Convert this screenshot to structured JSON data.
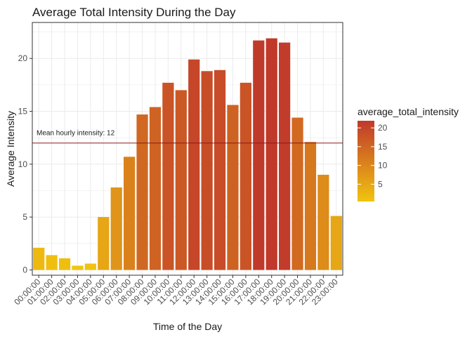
{
  "chart_data": {
    "type": "bar",
    "title": "Average Total Intensity During the Day",
    "xlabel": "Time of the Day",
    "ylabel": "Average Intensity",
    "categories": [
      "00:00:00",
      "01:00:00",
      "02:00:00",
      "03:00:00",
      "04:00:00",
      "05:00:00",
      "06:00:00",
      "07:00:00",
      "08:00:00",
      "09:00:00",
      "10:00:00",
      "11:00:00",
      "12:00:00",
      "13:00:00",
      "14:00:00",
      "15:00:00",
      "16:00:00",
      "17:00:00",
      "18:00:00",
      "19:00:00",
      "20:00:00",
      "21:00:00",
      "22:00:00",
      "23:00:00"
    ],
    "values": [
      2.1,
      1.4,
      1.1,
      0.4,
      0.6,
      5.0,
      7.8,
      10.7,
      14.7,
      15.4,
      17.7,
      17.0,
      19.9,
      18.8,
      18.9,
      15.6,
      17.7,
      21.7,
      21.9,
      21.5,
      14.4,
      12.1,
      9.0,
      5.1
    ],
    "ylim": [
      -0.5,
      23.4
    ],
    "yticks": [
      0,
      5,
      10,
      15,
      20
    ],
    "grid": true,
    "reference_line": {
      "value": 12,
      "label": "Mean hourly intensity: 12",
      "color": "#8b1a1a"
    },
    "legend": {
      "title": "average_total_intensity",
      "placement": "right",
      "ticks": [
        5,
        10,
        15,
        20
      ],
      "color_low": "#f1c40f",
      "color_high": "#c0392b",
      "range": [
        0.4,
        21.9
      ]
    }
  }
}
